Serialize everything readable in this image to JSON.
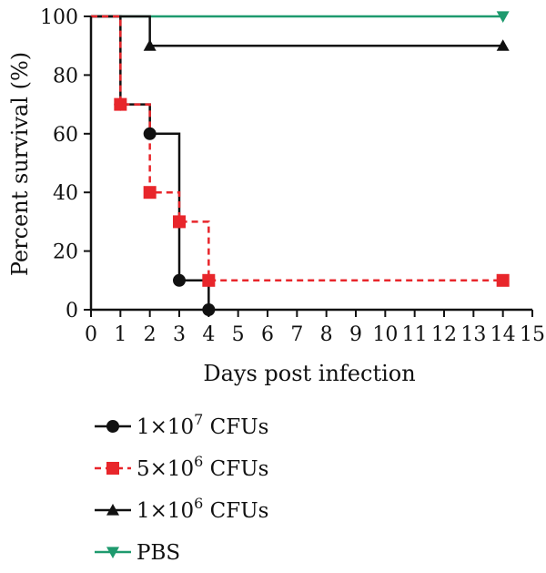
{
  "chart_data": {
    "type": "line",
    "subtype": "kaplan-meier survival curve",
    "title": "",
    "xlabel": "Days post infection",
    "ylabel": "Percent survival (%)",
    "xlim": [
      0,
      15
    ],
    "ylim": [
      0,
      100
    ],
    "x_ticks": [
      0,
      1,
      2,
      3,
      4,
      5,
      6,
      7,
      8,
      9,
      10,
      11,
      12,
      13,
      14,
      15
    ],
    "y_ticks": [
      0,
      20,
      40,
      60,
      80,
      100
    ],
    "grid": false,
    "legend_position": "bottom",
    "series": [
      {
        "name": "1×10^7 CFUs",
        "legend": {
          "base": "1×10",
          "exp": "7",
          "unit": " CFUs"
        },
        "color": "#111111",
        "line_style": "solid",
        "marker": "circle",
        "steps": [
          [
            0,
            100
          ],
          [
            1,
            70
          ],
          [
            2,
            60
          ],
          [
            3,
            10
          ],
          [
            4,
            0
          ]
        ],
        "markers": [
          [
            1,
            70
          ],
          [
            2,
            60
          ],
          [
            3,
            10
          ],
          [
            4,
            0
          ]
        ],
        "end_x": 4
      },
      {
        "name": "5×10^6 CFUs",
        "legend": {
          "base": "5×10",
          "exp": "6",
          "unit": " CFUs"
        },
        "color": "#e8262b",
        "line_style": "dashed",
        "marker": "square",
        "steps": [
          [
            0,
            100
          ],
          [
            1,
            70
          ],
          [
            2,
            40
          ],
          [
            3,
            30
          ],
          [
            4,
            10
          ]
        ],
        "markers": [
          [
            1,
            70
          ],
          [
            2,
            40
          ],
          [
            3,
            30
          ],
          [
            4,
            10
          ],
          [
            14,
            10
          ]
        ],
        "end_x": 14
      },
      {
        "name": "1×10^6 CFUs",
        "legend": {
          "base": "1×10",
          "exp": "6",
          "unit": " CFUs"
        },
        "color": "#111111",
        "line_style": "solid",
        "marker": "triangle-up",
        "steps": [
          [
            0,
            100
          ],
          [
            2,
            90
          ]
        ],
        "markers": [
          [
            2,
            90
          ],
          [
            14,
            90
          ]
        ],
        "end_x": 14
      },
      {
        "name": "PBS",
        "legend": {
          "base": "PBS",
          "exp": "",
          "unit": ""
        },
        "color": "#1e9a6e",
        "line_style": "solid",
        "marker": "triangle-down",
        "steps": [
          [
            0,
            100
          ]
        ],
        "markers": [
          [
            14,
            100
          ]
        ],
        "end_x": 14
      }
    ]
  }
}
